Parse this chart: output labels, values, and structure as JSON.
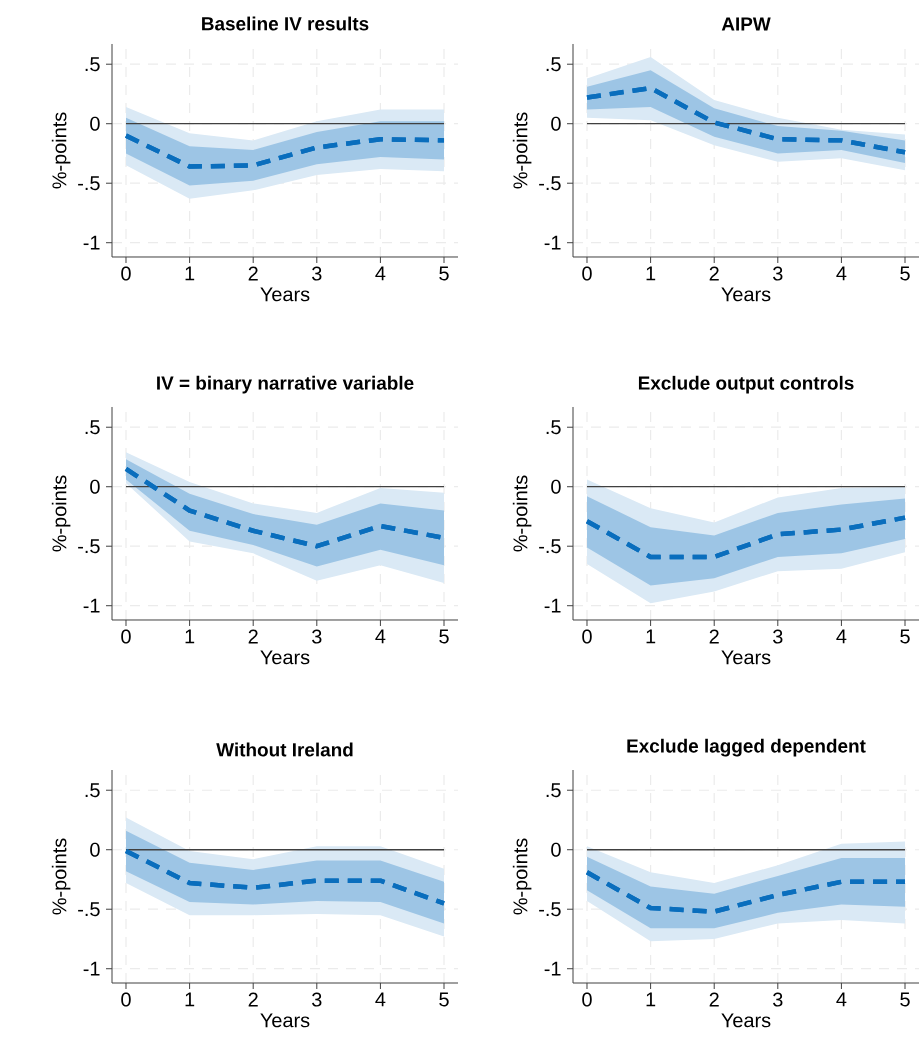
{
  "chart_data": [
    {
      "type": "line",
      "title": "Baseline IV results",
      "xlabel": "Years",
      "ylabel": "%-points",
      "x": [
        0,
        1,
        2,
        3,
        4,
        5
      ],
      "xlim": [
        -0.22,
        5.22
      ],
      "ylim": [
        -1.12,
        0.67
      ],
      "xticks": [
        0,
        1,
        2,
        3,
        4,
        5
      ],
      "yticks": [
        {
          "value": -1,
          "label": "-1"
        },
        {
          "value": -0.5,
          "label": "-.5"
        },
        {
          "value": 0,
          "label": "0"
        },
        {
          "value": 0.5,
          "label": ".5"
        }
      ],
      "grid": true,
      "line_style": "dashed",
      "ref_lines": [
        {
          "axis": "y",
          "value": 0,
          "color": "#404040"
        }
      ],
      "series": [
        {
          "color": "#0a6ebd",
          "values": [
            -0.1,
            -0.36,
            -0.35,
            -0.2,
            -0.13,
            -0.14
          ],
          "lower": [
            -0.35,
            -0.63,
            -0.56,
            -0.43,
            -0.38,
            -0.4
          ],
          "upper": [
            0.14,
            -0.08,
            -0.14,
            0.02,
            0.12,
            0.12
          ]
        },
        {
          "color": "#0a6ebd",
          "values": [
            -0.1,
            -0.36,
            -0.35,
            -0.2,
            -0.13,
            -0.14
          ],
          "lower": [
            -0.25,
            -0.52,
            -0.48,
            -0.34,
            -0.28,
            -0.3
          ],
          "upper": [
            0.05,
            -0.19,
            -0.22,
            -0.07,
            0.02,
            0.02
          ]
        }
      ]
    },
    {
      "type": "line",
      "title": "AIPW",
      "xlabel": "Years",
      "ylabel": "%-points",
      "x": [
        0,
        1,
        2,
        3,
        4,
        5
      ],
      "xlim": [
        -0.22,
        5.22
      ],
      "ylim": [
        -1.12,
        0.67
      ],
      "xticks": [
        0,
        1,
        2,
        3,
        4,
        5
      ],
      "yticks": [
        {
          "value": -1,
          "label": "-1"
        },
        {
          "value": -0.5,
          "label": "-.5"
        },
        {
          "value": 0,
          "label": "0"
        },
        {
          "value": 0.5,
          "label": ".5"
        }
      ],
      "grid": true,
      "line_style": "dashed",
      "ref_lines": [
        {
          "axis": "y",
          "value": 0,
          "color": "#404040"
        }
      ],
      "series": [
        {
          "color": "#0a6ebd",
          "values": [
            0.22,
            0.3,
            0.01,
            -0.13,
            -0.14,
            -0.24
          ],
          "lower": [
            0.05,
            0.03,
            -0.18,
            -0.32,
            -0.29,
            -0.39
          ],
          "upper": [
            0.38,
            0.56,
            0.2,
            0.05,
            -0.05,
            -0.09
          ]
        },
        {
          "color": "#0a6ebd",
          "values": [
            0.22,
            0.3,
            0.01,
            -0.13,
            -0.14,
            -0.24
          ],
          "lower": [
            0.12,
            0.14,
            -0.11,
            -0.25,
            -0.22,
            -0.33
          ],
          "upper": [
            0.31,
            0.45,
            0.13,
            -0.02,
            -0.06,
            -0.14
          ]
        }
      ]
    },
    {
      "type": "line",
      "title": "IV = binary narrative variable",
      "xlabel": "Years",
      "ylabel": "%-points",
      "x": [
        0,
        1,
        2,
        3,
        4,
        5
      ],
      "xlim": [
        -0.22,
        5.22
      ],
      "ylim": [
        -1.12,
        0.67
      ],
      "xticks": [
        0,
        1,
        2,
        3,
        4,
        5
      ],
      "yticks": [
        {
          "value": -1,
          "label": "-1"
        },
        {
          "value": -0.5,
          "label": "-.5"
        },
        {
          "value": 0,
          "label": "0"
        },
        {
          "value": 0.5,
          "label": ".5"
        }
      ],
      "grid": true,
      "line_style": "dashed",
      "ref_lines": [
        {
          "axis": "y",
          "value": 0,
          "color": "#404040"
        }
      ],
      "series": [
        {
          "color": "#0a6ebd",
          "values": [
            0.15,
            -0.2,
            -0.37,
            -0.5,
            -0.33,
            -0.43
          ],
          "lower": [
            0.03,
            -0.46,
            -0.56,
            -0.79,
            -0.66,
            -0.81
          ],
          "upper": [
            0.29,
            0.04,
            -0.14,
            -0.22,
            -0.01,
            -0.05
          ]
        },
        {
          "color": "#0a6ebd",
          "values": [
            0.15,
            -0.2,
            -0.37,
            -0.5,
            -0.33,
            -0.43
          ],
          "lower": [
            0.06,
            -0.37,
            -0.49,
            -0.67,
            -0.53,
            -0.66
          ],
          "upper": [
            0.23,
            -0.06,
            -0.23,
            -0.32,
            -0.14,
            -0.2
          ]
        }
      ]
    },
    {
      "type": "line",
      "title": "Exclude output controls",
      "xlabel": "Years",
      "ylabel": "%-points",
      "x": [
        0,
        1,
        2,
        3,
        4,
        5
      ],
      "xlim": [
        -0.22,
        5.22
      ],
      "ylim": [
        -1.12,
        0.67
      ],
      "xticks": [
        0,
        1,
        2,
        3,
        4,
        5
      ],
      "yticks": [
        {
          "value": -1,
          "label": "-1"
        },
        {
          "value": -0.5,
          "label": "-.5"
        },
        {
          "value": 0,
          "label": "0"
        },
        {
          "value": 0.5,
          "label": ".5"
        }
      ],
      "grid": true,
      "line_style": "dashed",
      "ref_lines": [
        {
          "axis": "y",
          "value": 0,
          "color": "#404040"
        }
      ],
      "series": [
        {
          "color": "#0a6ebd",
          "values": [
            -0.29,
            -0.59,
            -0.59,
            -0.4,
            -0.36,
            -0.26
          ],
          "lower": [
            -0.65,
            -0.98,
            -0.88,
            -0.71,
            -0.69,
            -0.55
          ],
          "upper": [
            0.06,
            -0.18,
            -0.3,
            -0.09,
            -0.01,
            0.0
          ]
        },
        {
          "color": "#0a6ebd",
          "values": [
            -0.29,
            -0.59,
            -0.59,
            -0.4,
            -0.36,
            -0.26
          ],
          "lower": [
            -0.51,
            -0.83,
            -0.77,
            -0.59,
            -0.56,
            -0.44
          ],
          "upper": [
            -0.08,
            -0.34,
            -0.41,
            -0.22,
            -0.15,
            -0.1
          ]
        }
      ]
    },
    {
      "type": "line",
      "title": "Without Ireland",
      "xlabel": "Years",
      "ylabel": "%-points",
      "x": [
        0,
        1,
        2,
        3,
        4,
        5
      ],
      "xlim": [
        -0.22,
        5.22
      ],
      "ylim": [
        -1.12,
        0.67
      ],
      "xticks": [
        0,
        1,
        2,
        3,
        4,
        5
      ],
      "yticks": [
        {
          "value": -1,
          "label": "-1"
        },
        {
          "value": -0.5,
          "label": "-.5"
        },
        {
          "value": 0,
          "label": "0"
        },
        {
          "value": 0.5,
          "label": ".5"
        }
      ],
      "grid": true,
      "line_style": "dashed",
      "ref_lines": [
        {
          "axis": "y",
          "value": 0,
          "color": "#404040"
        }
      ],
      "series": [
        {
          "color": "#0a6ebd",
          "values": [
            -0.01,
            -0.28,
            -0.32,
            -0.26,
            -0.26,
            -0.45
          ],
          "lower": [
            -0.28,
            -0.55,
            -0.55,
            -0.54,
            -0.55,
            -0.73
          ],
          "upper": [
            0.27,
            -0.01,
            -0.08,
            0.03,
            0.03,
            -0.16
          ]
        },
        {
          "color": "#0a6ebd",
          "values": [
            -0.01,
            -0.28,
            -0.32,
            -0.26,
            -0.26,
            -0.45
          ],
          "lower": [
            -0.18,
            -0.44,
            -0.46,
            -0.43,
            -0.44,
            -0.62
          ],
          "upper": [
            0.16,
            -0.11,
            -0.17,
            -0.09,
            -0.09,
            -0.27
          ]
        }
      ]
    },
    {
      "type": "line",
      "title": "Exclude lagged dependent",
      "xlabel": "Years",
      "ylabel": "%-points",
      "x": [
        0,
        1,
        2,
        3,
        4,
        5
      ],
      "xlim": [
        -0.22,
        5.22
      ],
      "ylim": [
        -1.12,
        0.67
      ],
      "xticks": [
        0,
        1,
        2,
        3,
        4,
        5
      ],
      "yticks": [
        {
          "value": -1,
          "label": "-1"
        },
        {
          "value": -0.5,
          "label": "-.5"
        },
        {
          "value": 0,
          "label": "0"
        },
        {
          "value": 0.5,
          "label": ".5"
        }
      ],
      "grid": true,
      "line_style": "dashed",
      "ref_lines": [
        {
          "axis": "y",
          "value": 0,
          "color": "#404040"
        }
      ],
      "series": [
        {
          "color": "#0a6ebd",
          "values": [
            -0.19,
            -0.49,
            -0.52,
            -0.38,
            -0.27,
            -0.27
          ],
          "lower": [
            -0.43,
            -0.77,
            -0.75,
            -0.62,
            -0.59,
            -0.62
          ],
          "upper": [
            0.03,
            -0.19,
            -0.28,
            -0.13,
            0.05,
            0.07
          ]
        },
        {
          "color": "#0a6ebd",
          "values": [
            -0.19,
            -0.49,
            -0.52,
            -0.38,
            -0.27,
            -0.27
          ],
          "lower": [
            -0.34,
            -0.66,
            -0.66,
            -0.53,
            -0.46,
            -0.48
          ],
          "upper": [
            -0.06,
            -0.31,
            -0.37,
            -0.22,
            -0.07,
            -0.07
          ]
        }
      ]
    }
  ]
}
